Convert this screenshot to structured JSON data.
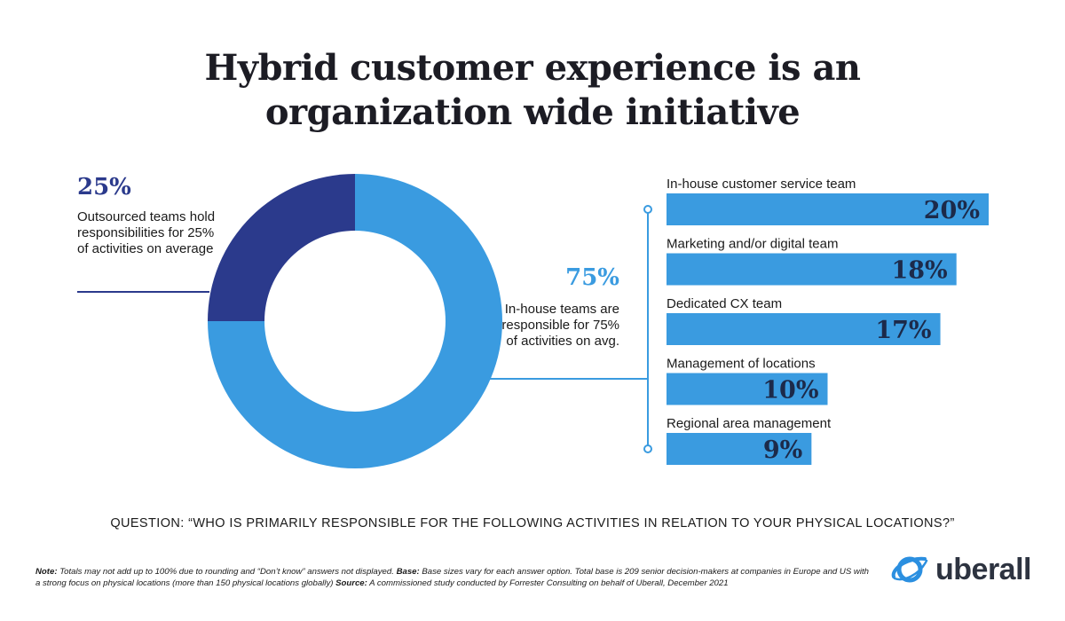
{
  "header": {
    "title_line1": "Hybrid customer experience is an",
    "title_line2": "organization wide initiative"
  },
  "callouts": {
    "outsourced_pct": "25%",
    "outsourced_desc": "Outsourced teams hold responsibilities for 25% of activities on average",
    "inhouse_pct": "75%",
    "inhouse_desc": "In-house teams are responsible for 75% of activities on avg."
  },
  "chart_data": [
    {
      "type": "pie",
      "style": "donut",
      "categories": [
        "In-house teams",
        "Outsourced teams"
      ],
      "values": [
        75,
        25
      ],
      "colors": [
        "#3a9be0",
        "#2b3a8c"
      ]
    },
    {
      "type": "bar",
      "orientation": "horizontal",
      "categories": [
        "In-house customer service team",
        "Marketing and/or digital team",
        "Dedicated CX team",
        "Management of locations",
        "Regional area management"
      ],
      "values": [
        20,
        18,
        17,
        10,
        9
      ],
      "value_labels": [
        "20%",
        "18%",
        "17%",
        "10%",
        "9%"
      ],
      "color": "#3a9be0",
      "label_color": "#1c2a4a"
    }
  ],
  "footer": {
    "question": "QUESTION: “WHO IS PRIMARILY RESPONSIBLE FOR THE FOLLOWING ACTIVITIES IN RELATION TO YOUR PHYSICAL LOCATIONS?”",
    "note_label": "Note:",
    "note_text": "Totals may not add up to 100% due to rounding and “Don’t know” answers not displayed.",
    "base_label": "Base:",
    "base_text": "Base sizes vary for each answer option. Total base is 209 senior decision-makers at companies in Europe and US with a strong focus on physical locations (more than 150 physical locations globally)",
    "source_label": "Source:",
    "source_text": "A commissioned study conducted by Forrester Consulting on behalf of Uberall, December 2021"
  },
  "logo": {
    "word": "uberall",
    "icon": "planet-globe-icon",
    "color": "#2b8fe0"
  }
}
